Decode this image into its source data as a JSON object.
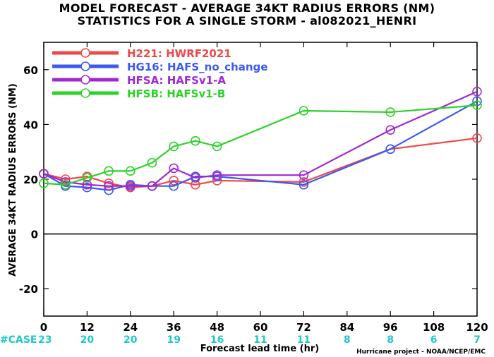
{
  "chart_data": {
    "type": "line",
    "title": "MODEL FORECAST - AVERAGE 34KT RADIUS ERRORS (NM)",
    "subtitle": "STATISTICS FOR A SINGLE STORM - al082021_HENRI",
    "xlabel": "Forecast lead time (hr)",
    "ylabel": "AVERAGE 34KT RADIUS ERRORS (NM)",
    "credit": "Hurricane project - NOAA/NCEP/EMC",
    "xlim": [
      0,
      120
    ],
    "ylim": [
      -30,
      70
    ],
    "xticks": [
      0,
      12,
      24,
      36,
      48,
      60,
      72,
      84,
      96,
      108,
      120
    ],
    "yticks": [
      -20,
      0,
      20,
      40,
      60
    ],
    "grid": false,
    "legend_position": "top-left",
    "case_label": "#CASE",
    "cases": [
      {
        "x": 0,
        "n": "23"
      },
      {
        "x": 12,
        "n": "20"
      },
      {
        "x": 24,
        "n": "20"
      },
      {
        "x": 36,
        "n": "19"
      },
      {
        "x": 48,
        "n": "16"
      },
      {
        "x": 60,
        "n": "11"
      },
      {
        "x": 72,
        "n": "11"
      },
      {
        "x": 84,
        "n": "8"
      },
      {
        "x": 96,
        "n": "8"
      },
      {
        "x": 108,
        "n": "6"
      },
      {
        "x": 120,
        "n": "7"
      }
    ],
    "series": [
      {
        "name": "H221: HWRF2021",
        "color": "#f04848",
        "points": [
          [
            0,
            22
          ],
          [
            6,
            20
          ],
          [
            12,
            21
          ],
          [
            18,
            18.5
          ],
          [
            24,
            17
          ],
          [
            30,
            17.5
          ],
          [
            36,
            19.5
          ],
          [
            42,
            18
          ],
          [
            48,
            19.5
          ],
          [
            72,
            19
          ],
          [
            96,
            31
          ],
          [
            120,
            35
          ]
        ]
      },
      {
        "name": "HG16: HAFS_no_change",
        "color": "#3c5af0",
        "points": [
          [
            0,
            22
          ],
          [
            6,
            17.5
          ],
          [
            12,
            17
          ],
          [
            18,
            16
          ],
          [
            24,
            18
          ],
          [
            30,
            17.5
          ],
          [
            36,
            17.5
          ],
          [
            42,
            21
          ],
          [
            48,
            21
          ],
          [
            72,
            18
          ],
          [
            96,
            31
          ],
          [
            120,
            48.5
          ]
        ]
      },
      {
        "name": "HFSA: HAFSv1-A",
        "color": "#a028d2",
        "points": [
          [
            0,
            22
          ],
          [
            6,
            19
          ],
          [
            12,
            18
          ],
          [
            18,
            17.5
          ],
          [
            24,
            17.5
          ],
          [
            30,
            17.5
          ],
          [
            36,
            24
          ],
          [
            42,
            20.5
          ],
          [
            48,
            21.5
          ],
          [
            72,
            21.5
          ],
          [
            96,
            38
          ],
          [
            120,
            52
          ]
        ]
      },
      {
        "name": "HFSB: HAFSv1-B",
        "color": "#2cd228",
        "points": [
          [
            0,
            18.5
          ],
          [
            6,
            18
          ],
          [
            12,
            20.5
          ],
          [
            18,
            23
          ],
          [
            24,
            23
          ],
          [
            30,
            26
          ],
          [
            36,
            32
          ],
          [
            42,
            34
          ],
          [
            48,
            32
          ],
          [
            72,
            45
          ],
          [
            96,
            44.5
          ],
          [
            120,
            47
          ]
        ]
      }
    ]
  }
}
